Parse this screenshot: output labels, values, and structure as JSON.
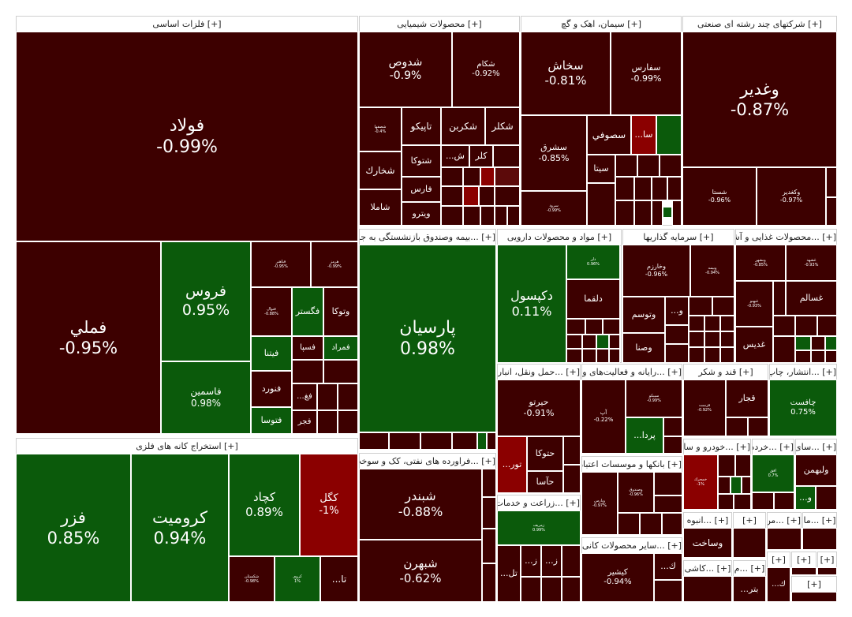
{
  "colors": {
    "neg_dark": "#3d0000",
    "neg_mid": "#5c0a0a",
    "neg_red": "#8b0000",
    "pos_green": "#0b5a0b",
    "pos_bright": "#106b10",
    "header_bg": "#ffffff"
  },
  "sections": [
    {
      "label": "[+] فلزات اساسی"
    },
    {
      "label": "[+] محصولات شیمیایی"
    },
    {
      "label": "[+] سیمان، اهک و گچ"
    },
    {
      "label": "[+] شرکتهای چند رشته ای صنعتی"
    },
    {
      "label": "[+] ...بیمه وصندوق بازنشستگی به جزتام"
    },
    {
      "label": "[+] مواد و محصولات دارویی"
    },
    {
      "label": "[+] سرمایه گذاریها"
    },
    {
      "label": "[+] ...محصولات غذایی و آشا"
    },
    {
      "label": "[+] ...حمل ونقل، انبارداا"
    },
    {
      "label": "[+] ...رایانه و فعالیت‌های وا"
    },
    {
      "label": "[+] قند و شکر"
    },
    {
      "label": "[+] ...انتشار، چاپ"
    },
    {
      "label": "[+] استخراج کانه های فلزی"
    },
    {
      "label": "[+] ...فراورده های نفتی، کک و سوخت ه"
    },
    {
      "label": "[+] ...زراعت و خدمات و"
    },
    {
      "label": "[+] بانکها و موسسات اعتباری"
    },
    {
      "label": "[+] ...سایر محصولات کانی"
    },
    {
      "label": "[+] ...خودرو و سا"
    },
    {
      "label": "[+] ...خرده"
    },
    {
      "label": "[+] ...سای"
    },
    {
      "label": "[+] ...انبوه"
    },
    {
      "label": "[+] ...کاشی"
    },
    {
      "label": "[+] ...من"
    },
    {
      "label": "[+] ...ما"
    },
    {
      "label": "[+] ...م"
    },
    {
      "label": "[+]"
    },
    {
      "label": "[+]"
    },
    {
      "label": "[+]"
    },
    {
      "label": "[+]"
    },
    {
      "label": "[+]"
    }
  ],
  "tiles": [
    {
      "name": "فولاد",
      "pct": "-0.99%",
      "color": "#3d0000"
    },
    {
      "name": "فملي",
      "pct": "-0.95%",
      "color": "#3d0000"
    },
    {
      "name": "فروس",
      "pct": "0.95%",
      "color": "#0b5a0b"
    },
    {
      "name": "فاسمين",
      "pct": "0.98%",
      "color": "#0b5a0b"
    },
    {
      "name": "فباهنر",
      "pct": "-0.95%",
      "color": "#3d0000"
    },
    {
      "name": "هرمز",
      "pct": "-0.99%",
      "color": "#3d0000"
    },
    {
      "name": "فنوال",
      "pct": "-0.88%",
      "color": "#3d0000"
    },
    {
      "name": "فگستر",
      "pct": "",
      "color": "#0b5a0b"
    },
    {
      "name": "وتوكا",
      "pct": "",
      "color": "#3d0000"
    },
    {
      "name": "فسپا",
      "pct": "",
      "color": "#3d0000"
    },
    {
      "name": "فمراد",
      "pct": "",
      "color": "#0b5a0b"
    },
    {
      "name": "فيتنا",
      "pct": "",
      "color": "#0b5a0b"
    },
    {
      "name": "فنورد",
      "pct": "",
      "color": "#3d0000"
    },
    {
      "name": "...فغ",
      "pct": "",
      "color": "#3d0000"
    },
    {
      "name": "فتوسا",
      "pct": "",
      "color": "#0b5a0b"
    },
    {
      "name": "فجر",
      "pct": "",
      "color": "#3d0000"
    },
    {
      "name": "شدوص",
      "pct": "-0.9%",
      "color": "#3d0000"
    },
    {
      "name": "شكام",
      "pct": "-0.92%",
      "color": "#3d0000"
    },
    {
      "name": "شصفها",
      "pct": "-0.4%",
      "color": "#3d0000"
    },
    {
      "name": "تاپيكو",
      "pct": "",
      "color": "#3d0000"
    },
    {
      "name": "شكربن",
      "pct": "",
      "color": "#3d0000"
    },
    {
      "name": "شكلر",
      "pct": "",
      "color": "#3d0000"
    },
    {
      "name": "شخارك",
      "pct": "",
      "color": "#3d0000"
    },
    {
      "name": "شتوكا",
      "pct": "",
      "color": "#3d0000"
    },
    {
      "name": "...ش",
      "pct": "",
      "color": "#3d0000"
    },
    {
      "name": "كلر",
      "pct": "",
      "color": "#3d0000"
    },
    {
      "name": "فارس",
      "pct": "",
      "color": "#3d0000"
    },
    {
      "name": "شاملا",
      "pct": "",
      "color": "#3d0000"
    },
    {
      "name": "ويترو",
      "pct": "",
      "color": "#3d0000"
    },
    {
      "name": "سخاش",
      "pct": "-0.81%",
      "color": "#3d0000"
    },
    {
      "name": "سفارس",
      "pct": "-0.99%",
      "color": "#3d0000"
    },
    {
      "name": "سشرق",
      "pct": "-0.85%",
      "color": "#3d0000"
    },
    {
      "name": "سصوفي",
      "pct": "",
      "color": "#3d0000"
    },
    {
      "name": "...سا",
      "pct": "",
      "color": "#8b0000"
    },
    {
      "name": "سيتا",
      "pct": "",
      "color": "#3d0000"
    },
    {
      "name": "سرود",
      "pct": "-0.99%",
      "color": "#3d0000"
    },
    {
      "name": "وغدير",
      "pct": "-0.87%",
      "color": "#3d0000"
    },
    {
      "name": "شستا",
      "pct": "-0.96%",
      "color": "#3d0000"
    },
    {
      "name": "وكغدير",
      "pct": "-0.97%",
      "color": "#3d0000"
    },
    {
      "name": "پارسيان",
      "pct": "0.98%",
      "color": "#0b5a0b"
    },
    {
      "name": "دكپسول",
      "pct": "0.11%",
      "color": "#0b5a0b"
    },
    {
      "name": "دلر",
      "pct": "0.96%",
      "color": "#0b5a0b"
    },
    {
      "name": "دلقما",
      "pct": "",
      "color": "#3d0000"
    },
    {
      "name": "وخارزم",
      "pct": "-0.96%",
      "color": "#3d0000"
    },
    {
      "name": "وبيمه",
      "pct": "-0.94%",
      "color": "#3d0000"
    },
    {
      "name": "...و",
      "pct": "",
      "color": "#3d0000"
    },
    {
      "name": "وتوسم",
      "pct": "",
      "color": "#3d0000"
    },
    {
      "name": "وصنا",
      "pct": "",
      "color": "#3d0000"
    },
    {
      "name": "وبشهر",
      "pct": "-0.85%",
      "color": "#3d0000"
    },
    {
      "name": "غشهد",
      "pct": "-0.93%",
      "color": "#3d0000"
    },
    {
      "name": "غسالم",
      "pct": "",
      "color": "#3d0000"
    },
    {
      "name": "غبهنو",
      "pct": "-0.93%",
      "color": "#3d0000"
    },
    {
      "name": "غديس",
      "pct": "",
      "color": "#3d0000"
    },
    {
      "name": "حيرتو",
      "pct": "-0.91%",
      "color": "#3d0000"
    },
    {
      "name": "...تور",
      "pct": "",
      "color": "#8b0000"
    },
    {
      "name": "حتوكا",
      "pct": "",
      "color": "#3d0000"
    },
    {
      "name": "حآسا",
      "pct": "",
      "color": "#3d0000"
    },
    {
      "name": "سيبكو",
      "pct": "-0.99%",
      "color": "#3d0000"
    },
    {
      "name": "آپ",
      "pct": "-0.22%",
      "color": "#3d0000"
    },
    {
      "name": "...پردا",
      "pct": "",
      "color": "#0b5a0b"
    },
    {
      "name": "قجار",
      "pct": "",
      "color": "#3d0000"
    },
    {
      "name": "قزست",
      "pct": "-0.92%",
      "color": "#3d0000"
    },
    {
      "name": "چافست",
      "pct": "0.75%",
      "color": "#0b5a0b"
    },
    {
      "name": "فزر",
      "pct": "0.85%",
      "color": "#0b5a0b"
    },
    {
      "name": "كروميت",
      "pct": "0.94%",
      "color": "#0b5a0b"
    },
    {
      "name": "كچاد",
      "pct": "0.89%",
      "color": "#0b5a0b"
    },
    {
      "name": "كگل",
      "pct": "-1%",
      "color": "#8b0000"
    },
    {
      "name": "شكستان",
      "pct": "-0.98%",
      "color": "#3d0000"
    },
    {
      "name": "كروی",
      "pct": "1%",
      "color": "#0b5a0b"
    },
    {
      "name": "...تا",
      "pct": "",
      "color": "#3d0000"
    },
    {
      "name": "شبندر",
      "pct": "-0.88%",
      "color": "#3d0000"
    },
    {
      "name": "شبهرن",
      "pct": "-0.62%",
      "color": "#3d0000"
    },
    {
      "name": "زمريف",
      "pct": "0.99%",
      "color": "#0b5a0b"
    },
    {
      "name": "...تل",
      "pct": "",
      "color": "#3d0000"
    },
    {
      "name": "...ز",
      "pct": "",
      "color": "#3d0000"
    },
    {
      "name": "...ز",
      "pct": "",
      "color": "#3d0000"
    },
    {
      "name": "وپارس",
      "pct": "-0.97%",
      "color": "#3d0000"
    },
    {
      "name": "وصندوق",
      "pct": "-0.96%",
      "color": "#3d0000"
    },
    {
      "name": "كيشير",
      "pct": "-0.94%",
      "color": "#3d0000"
    },
    {
      "name": "...ك",
      "pct": "",
      "color": "#3d0000"
    },
    {
      "name": "خمحرك",
      "pct": "-1%",
      "color": "#8b0000"
    },
    {
      "name": "افق",
      "pct": "0.7%",
      "color": "#0b5a0b"
    },
    {
      "name": "ولبهمن",
      "pct": "",
      "color": "#3d0000"
    },
    {
      "name": "...و",
      "pct": "",
      "color": "#0b5a0b"
    },
    {
      "name": "وساخت",
      "pct": "",
      "color": "#3d0000"
    },
    {
      "name": "...بتر",
      "pct": "",
      "color": "#3d0000"
    },
    {
      "name": "...ك",
      "pct": "",
      "color": "#3d0000"
    },
    {
      "name": "",
      "pct": "",
      "color": "#3d0000"
    }
  ]
}
